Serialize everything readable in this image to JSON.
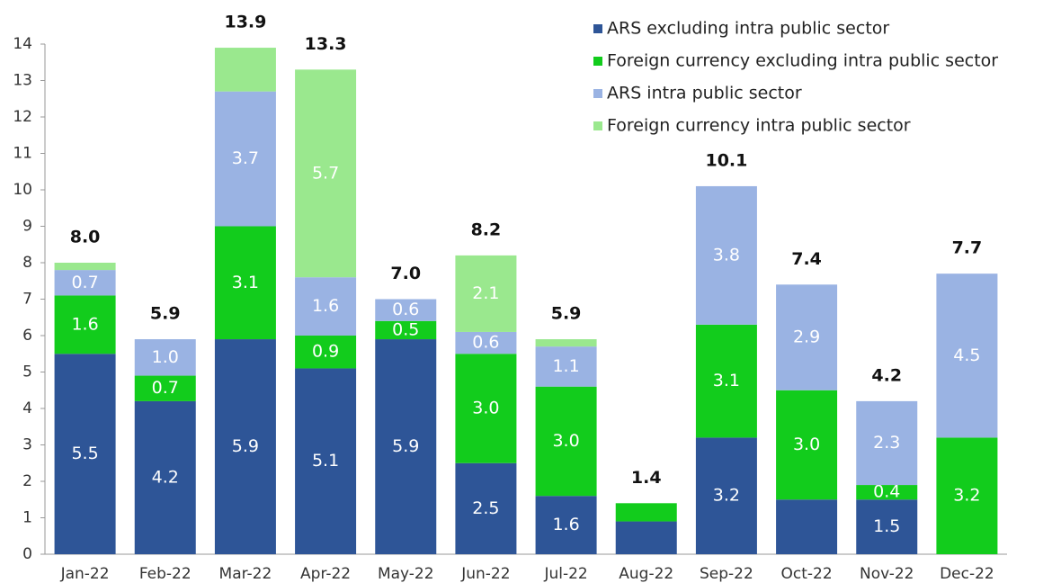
{
  "chart_data": {
    "type": "stacked_bar",
    "categories": [
      "Jan-22",
      "Feb-22",
      "Mar-22",
      "Apr-22",
      "May-22",
      "Jun-22",
      "Jul-22",
      "Aug-22",
      "Sep-22",
      "Oct-22",
      "Nov-22",
      "Dec-22"
    ],
    "series": [
      {
        "name": "ARS excluding intra public sector",
        "color": "#2e5597",
        "values": [
          5.5,
          4.2,
          5.9,
          5.1,
          5.9,
          2.5,
          1.6,
          0.9,
          3.2,
          1.5,
          1.5,
          0
        ],
        "value_labels": [
          "5.5",
          "4.2",
          "5.9",
          "5.1",
          "5.9",
          "2.5",
          "1.6",
          null,
          "3.2",
          null,
          "1.5",
          null
        ]
      },
      {
        "name": "Foreign currency excluding intra public sector",
        "color": "#12cc1c",
        "values": [
          1.6,
          0.7,
          3.1,
          0.9,
          0.5,
          3.0,
          3.0,
          0.5,
          3.1,
          3.0,
          0.4,
          3.2
        ],
        "value_labels": [
          "1.6",
          "0.7",
          "3.1",
          "0.9",
          "0.5",
          "3.0",
          "3.0",
          null,
          "3.1",
          "3.0",
          "0.4",
          "3.2"
        ]
      },
      {
        "name": "ARS intra public sector",
        "color": "#9ab3e3",
        "values": [
          0.7,
          1.0,
          3.7,
          1.6,
          0.6,
          0.6,
          1.1,
          0,
          3.8,
          2.9,
          2.3,
          4.5
        ],
        "value_labels": [
          "0.7",
          "1.0",
          "3.7",
          "1.6",
          "0.6",
          "0.6",
          "1.1",
          null,
          "3.8",
          "2.9",
          "2.3",
          "4.5"
        ]
      },
      {
        "name": "Foreign currency intra public sector",
        "color": "#9ae88e",
        "values": [
          0.2,
          0,
          1.2,
          5.7,
          0,
          2.1,
          0.2,
          0,
          0,
          0,
          0,
          0
        ],
        "value_labels": [
          null,
          null,
          null,
          "5.7",
          null,
          "2.1",
          null,
          null,
          null,
          null,
          null,
          null
        ]
      }
    ],
    "totals": [
      8.0,
      5.9,
      13.9,
      13.3,
      7.0,
      8.2,
      5.9,
      1.4,
      10.1,
      7.4,
      4.2,
      7.7
    ],
    "total_labels": [
      "8.0",
      "5.9",
      "13.9",
      "13.3",
      "7.0",
      "8.2",
      "5.9",
      "1.4",
      "10.1",
      "7.4",
      "4.2",
      "7.7"
    ],
    "ylim": [
      0,
      14
    ],
    "yticks": [
      0,
      1,
      2,
      3,
      4,
      5,
      6,
      7,
      8,
      9,
      10,
      11,
      12,
      13,
      14
    ]
  }
}
